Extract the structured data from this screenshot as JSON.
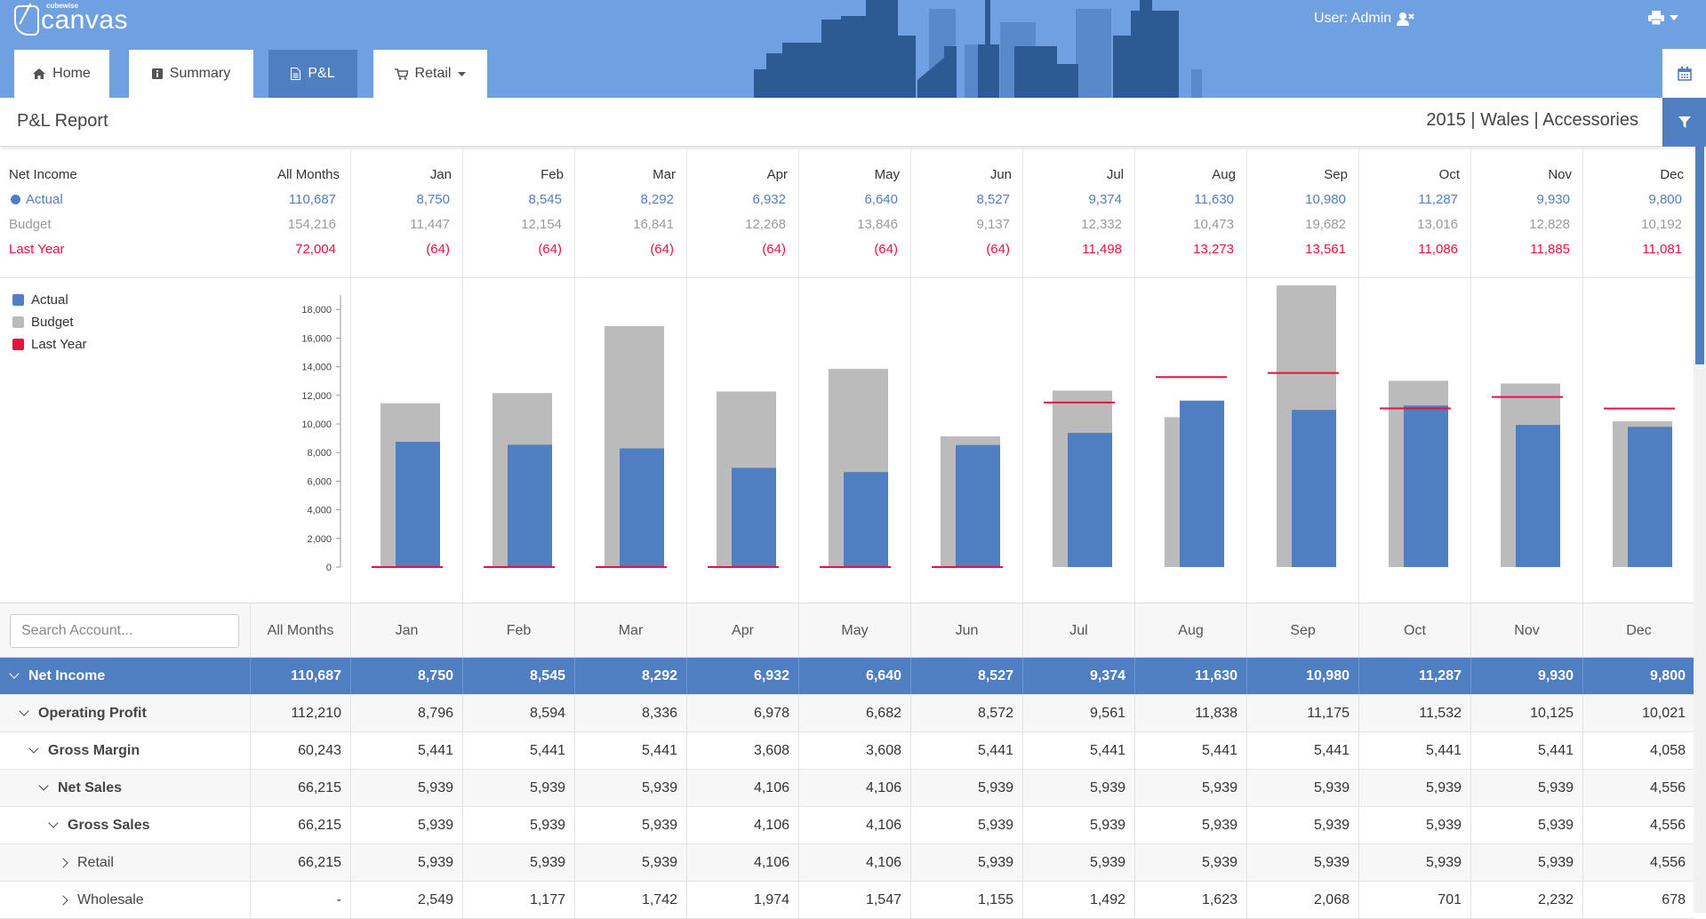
{
  "app": {
    "logo_sub": "cubewise",
    "logo_text": "canvas"
  },
  "header": {
    "user_label": "User: Admin",
    "tabs": [
      {
        "label": "Home",
        "icon": "home-icon"
      },
      {
        "label": "Summary",
        "icon": "info-icon"
      },
      {
        "label": "P&L",
        "icon": "document-icon"
      },
      {
        "label": "Retail",
        "icon": "cart-icon"
      }
    ]
  },
  "titlebar": {
    "title": "P&L Report",
    "context": "2015 | Wales | Accessories"
  },
  "months": [
    "Jan",
    "Feb",
    "Mar",
    "Apr",
    "May",
    "Jun",
    "Jul",
    "Aug",
    "Sep",
    "Oct",
    "Nov",
    "Dec"
  ],
  "summary": {
    "header_label": "Net Income",
    "all_months_label": "All Months",
    "rows": [
      {
        "label": "Actual",
        "total": "110,687",
        "values": [
          "8,750",
          "8,545",
          "8,292",
          "6,932",
          "6,640",
          "8,527",
          "9,374",
          "11,630",
          "10,980",
          "11,287",
          "9,930",
          "9,800"
        ]
      },
      {
        "label": "Budget",
        "total": "154,216",
        "values": [
          "11,447",
          "12,154",
          "16,841",
          "12,268",
          "13,846",
          "9,137",
          "12,332",
          "10,473",
          "19,682",
          "13,016",
          "12,828",
          "10,192"
        ]
      },
      {
        "label": "Last Year",
        "total": "72,004",
        "values": [
          "(64)",
          "(64)",
          "(64)",
          "(64)",
          "(64)",
          "(64)",
          "11,498",
          "13,273",
          "13,561",
          "11,086",
          "11,885",
          "11,081"
        ]
      }
    ]
  },
  "colors": {
    "actual": "#4f7fc1",
    "budget": "#bbbbbb",
    "last_year": "#e8123c",
    "header": "#6fa0e0"
  },
  "chart_data": {
    "type": "bar",
    "categories": [
      "Jan",
      "Feb",
      "Mar",
      "Apr",
      "May",
      "Jun",
      "Jul",
      "Aug",
      "Sep",
      "Oct",
      "Nov",
      "Dec"
    ],
    "series": [
      {
        "name": "Actual",
        "values": [
          8750,
          8545,
          8292,
          6932,
          6640,
          8527,
          9374,
          11630,
          10980,
          11287,
          9930,
          9800
        ]
      },
      {
        "name": "Budget",
        "values": [
          11447,
          12154,
          16841,
          12268,
          13846,
          9137,
          12332,
          10473,
          19682,
          13016,
          12828,
          10192
        ]
      },
      {
        "name": "Last Year",
        "values": [
          -64,
          -64,
          -64,
          -64,
          -64,
          -64,
          11498,
          13273,
          13561,
          11086,
          11885,
          11081
        ]
      }
    ],
    "yticks": [
      "0",
      "2,000",
      "4,000",
      "6,000",
      "8,000",
      "10,000",
      "12,000",
      "14,000",
      "16,000",
      "18,000"
    ],
    "ylim": [
      0,
      20000
    ],
    "legend": "top-left",
    "grid": false
  },
  "grid": {
    "search_placeholder": "Search Account...",
    "all_months_label": "All Months",
    "rows": [
      {
        "label": "Net Income",
        "level": 0,
        "expanded": true,
        "bold": true,
        "total": "110,687",
        "values": [
          "8,750",
          "8,545",
          "8,292",
          "6,932",
          "6,640",
          "8,527",
          "9,374",
          "11,630",
          "10,980",
          "11,287",
          "9,930",
          "9,800"
        ]
      },
      {
        "label": "Operating Profit",
        "level": 1,
        "expanded": true,
        "bold": true,
        "total": "112,210",
        "values": [
          "8,796",
          "8,594",
          "8,336",
          "6,978",
          "6,682",
          "8,572",
          "9,561",
          "11,838",
          "11,175",
          "11,532",
          "10,125",
          "10,021"
        ]
      },
      {
        "label": "Gross Margin",
        "level": 2,
        "expanded": true,
        "bold": true,
        "total": "60,243",
        "values": [
          "5,441",
          "5,441",
          "5,441",
          "3,608",
          "3,608",
          "5,441",
          "5,441",
          "5,441",
          "5,441",
          "5,441",
          "5,441",
          "4,058"
        ]
      },
      {
        "label": "Net Sales",
        "level": 3,
        "expanded": true,
        "bold": true,
        "total": "66,215",
        "values": [
          "5,939",
          "5,939",
          "5,939",
          "4,106",
          "4,106",
          "5,939",
          "5,939",
          "5,939",
          "5,939",
          "5,939",
          "5,939",
          "4,556"
        ]
      },
      {
        "label": "Gross Sales",
        "level": 4,
        "expanded": true,
        "bold": true,
        "total": "66,215",
        "values": [
          "5,939",
          "5,939",
          "5,939",
          "4,106",
          "4,106",
          "5,939",
          "5,939",
          "5,939",
          "5,939",
          "5,939",
          "5,939",
          "4,556"
        ]
      },
      {
        "label": "Retail",
        "level": 5,
        "expanded": false,
        "bold": false,
        "total": "66,215",
        "values": [
          "5,939",
          "5,939",
          "5,939",
          "4,106",
          "4,106",
          "5,939",
          "5,939",
          "5,939",
          "5,939",
          "5,939",
          "5,939",
          "4,556"
        ]
      },
      {
        "label": "Wholesale",
        "level": 5,
        "expanded": false,
        "bold": false,
        "total": "-",
        "values": [
          "2,549",
          "1,177",
          "1,742",
          "1,974",
          "1,547",
          "1,155",
          "1,492",
          "1,623",
          "2,068",
          "701",
          "2,232",
          "678"
        ]
      }
    ]
  }
}
